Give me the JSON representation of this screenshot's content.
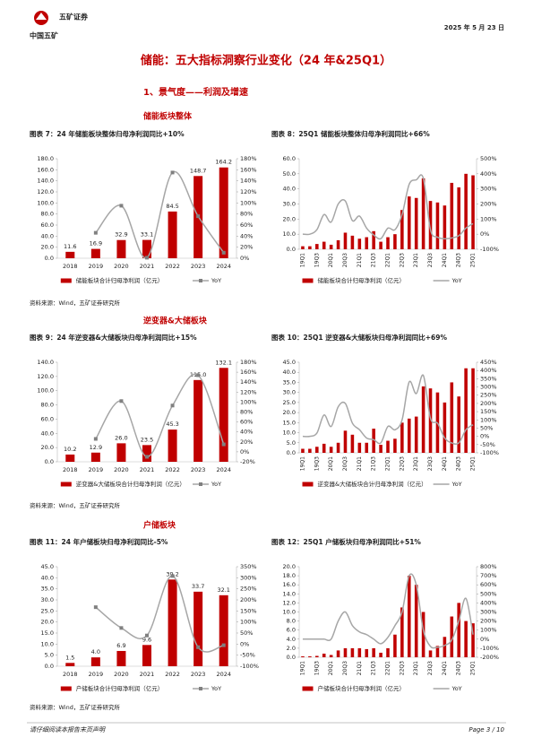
{
  "header": {
    "logo": "中国五矿",
    "brand": "五矿证券",
    "date": "2025 年 5 月 23 日"
  },
  "title": "储能：五大指标洞察行业变化（24 年&25Q1）",
  "subtitle": "1、景气度——利润及增速",
  "sections": [
    {
      "heading": "储能板块整体",
      "source": "资料来源：Wind，五矿证券研究所"
    },
    {
      "heading": "逆变器&大储板块",
      "source": "资料来源：Wind，五矿证券研究所"
    },
    {
      "heading": "户储板块",
      "source": "资料来源：Wind，五矿证券研究所"
    }
  ],
  "chart_data": [
    {
      "type": "combo",
      "title": "图表 7：24 年储能板块整体归母净利润同比+10%",
      "categories": [
        "2018",
        "2019",
        "2020",
        "2021",
        "2022",
        "2023",
        "2024"
      ],
      "series": [
        {
          "name": "储能板块合计归母净利润（亿元）",
          "type": "bar",
          "color": "#c00000",
          "values": [
            11.6,
            16.9,
            32.9,
            33.1,
            84.5,
            148.7,
            164.2
          ]
        },
        {
          "name": "YoY",
          "type": "line",
          "axis": "y2",
          "color": "#a6a6a6",
          "marker": "square",
          "smooth": true,
          "values": [
            null,
            46,
            95,
            1,
            155,
            76,
            10
          ]
        }
      ],
      "ylim": [
        0,
        180
      ],
      "yticks": [
        {
          "value": 0,
          "label": "0.0"
        },
        {
          "value": 20,
          "label": "20.0"
        },
        {
          "value": 40,
          "label": "40.0"
        },
        {
          "value": 60,
          "label": "60.0"
        },
        {
          "value": 80,
          "label": "80.0"
        },
        {
          "value": 100,
          "label": "100.0"
        },
        {
          "value": 120,
          "label": "120.0"
        },
        {
          "value": 140,
          "label": "140.0"
        },
        {
          "value": 160,
          "label": "160.0"
        },
        {
          "value": 180,
          "label": "180.0"
        }
      ],
      "y2lim": [
        0,
        180
      ],
      "y2ticks": [
        {
          "value": 0,
          "label": "0%"
        },
        {
          "value": 20,
          "label": "20%"
        },
        {
          "value": 40,
          "label": "40%"
        },
        {
          "value": 60,
          "label": "60%"
        },
        {
          "value": 80,
          "label": "80%"
        },
        {
          "value": 100,
          "label": "100%"
        },
        {
          "value": 120,
          "label": "120%"
        },
        {
          "value": 140,
          "label": "140%"
        },
        {
          "value": 160,
          "label": "160%"
        },
        {
          "value": 180,
          "label": "180%"
        }
      ]
    },
    {
      "type": "combo",
      "title": "图表 8：25Q1 储能板块整体归母净利润同比+66%",
      "categories": [
        "19Q1",
        null,
        "19Q3",
        null,
        "20Q1",
        null,
        "20Q3",
        null,
        "21Q1",
        null,
        "21Q3",
        null,
        "22Q1",
        null,
        "22Q3",
        null,
        "23Q1",
        null,
        "23Q3",
        null,
        "24Q1",
        null,
        "24Q3",
        null,
        "25Q1"
      ],
      "series": [
        {
          "name": "储能板块合计归母净利润（亿元）",
          "type": "bar",
          "color": "#c00000",
          "values": [
            2,
            2,
            3.5,
            5,
            3,
            6,
            11,
            9,
            7,
            8,
            12,
            5,
            8,
            10,
            26,
            35,
            34,
            47,
            32,
            31,
            29,
            44,
            41,
            50,
            49
          ]
        },
        {
          "name": "YoY",
          "type": "line",
          "axis": "y2",
          "color": "#a6a6a6",
          "smooth": true,
          "values": [
            0,
            0,
            30,
            130,
            80,
            200,
            220,
            90,
            120,
            40,
            -5,
            -30,
            40,
            30,
            130,
            330,
            360,
            370,
            30,
            -20,
            -30,
            -25,
            -10,
            40,
            70
          ]
        }
      ],
      "ylim": [
        0,
        60
      ],
      "yticks": [
        {
          "value": 0,
          "label": "0.0"
        },
        {
          "value": 10,
          "label": "10.0"
        },
        {
          "value": 20,
          "label": "20.0"
        },
        {
          "value": 30,
          "label": "30.0"
        },
        {
          "value": 40,
          "label": "40.0"
        },
        {
          "value": 50,
          "label": "50.0"
        },
        {
          "value": 60,
          "label": "60.0"
        }
      ],
      "y2lim": [
        -100,
        500
      ],
      "y2ticks": [
        {
          "value": -100,
          "label": "-100%"
        },
        {
          "value": 0,
          "label": "0%"
        },
        {
          "value": 100,
          "label": "100%"
        },
        {
          "value": 200,
          "label": "200%"
        },
        {
          "value": 300,
          "label": "300%"
        },
        {
          "value": 400,
          "label": "400%"
        },
        {
          "value": 500,
          "label": "500%"
        }
      ]
    },
    {
      "type": "combo",
      "title": "图表 9：24 年逆变器&大储板块归母净利润同比+15%",
      "categories": [
        "2018",
        "2019",
        "2020",
        "2021",
        "2022",
        "2023",
        "2024"
      ],
      "series": [
        {
          "name": "逆变器&大储板块合计归母净利润（亿元）",
          "type": "bar",
          "color": "#c00000",
          "values": [
            10.2,
            12.9,
            26,
            23.5,
            45.3,
            115,
            132.1
          ],
          "value_labels": [
            "10.2",
            "12.9",
            "26.0",
            "23.5",
            "45.3",
            "115.0",
            "132.1"
          ]
        },
        {
          "name": "YoY",
          "type": "line",
          "axis": "y2",
          "color": "#a6a6a6",
          "marker": "square",
          "smooth": true,
          "values": [
            null,
            26,
            102,
            -10,
            93,
            154,
            15
          ]
        }
      ],
      "ylim": [
        0,
        140
      ],
      "yticks": [
        {
          "value": 0,
          "label": "0.0"
        },
        {
          "value": 20,
          "label": "20.0"
        },
        {
          "value": 40,
          "label": "40.0"
        },
        {
          "value": 60,
          "label": "60.0"
        },
        {
          "value": 80,
          "label": "80.0"
        },
        {
          "value": 100,
          "label": "100.0"
        },
        {
          "value": 120,
          "label": "120.0"
        },
        {
          "value": 140,
          "label": "140.0"
        }
      ],
      "y2lim": [
        -20,
        180
      ],
      "y2ticks": [
        {
          "value": -20,
          "label": "-20%"
        },
        {
          "value": 0,
          "label": "0%"
        },
        {
          "value": 20,
          "label": "20%"
        },
        {
          "value": 40,
          "label": "40%"
        },
        {
          "value": 60,
          "label": "60%"
        },
        {
          "value": 80,
          "label": "80%"
        },
        {
          "value": 100,
          "label": "100%"
        },
        {
          "value": 120,
          "label": "120%"
        },
        {
          "value": 140,
          "label": "140%"
        },
        {
          "value": 160,
          "label": "160%"
        },
        {
          "value": 180,
          "label": "180%"
        }
      ]
    },
    {
      "type": "combo",
      "title": "图表 10：25Q1 逆变器&大储板块归母净利润同比+69%",
      "categories": [
        "19Q1",
        null,
        "19Q3",
        null,
        "20Q1",
        null,
        "20Q3",
        null,
        "21Q1",
        null,
        "21Q3",
        null,
        "22Q1",
        null,
        "22Q3",
        null,
        "23Q1",
        null,
        "23Q3",
        null,
        "24Q1",
        null,
        "24Q3",
        null,
        "25Q1"
      ],
      "series": [
        {
          "name": "逆变器&大储板块合计归母净利润（亿元）",
          "type": "bar",
          "color": "#c00000",
          "values": [
            2,
            2,
            3,
            4.5,
            3,
            5,
            11,
            9,
            5,
            5,
            12,
            4,
            6,
            7,
            15,
            17,
            18,
            33,
            32,
            30,
            25,
            35,
            28,
            42,
            42
          ]
        },
        {
          "name": "YoY",
          "type": "line",
          "axis": "y2",
          "color": "#a6a6a6",
          "smooth": true,
          "values": [
            0,
            0,
            20,
            130,
            60,
            180,
            200,
            80,
            40,
            -10,
            -20,
            -40,
            60,
            40,
            100,
            330,
            260,
            370,
            110,
            80,
            -10,
            -40,
            -40,
            40,
            70
          ]
        }
      ],
      "ylim": [
        0,
        45
      ],
      "yticks": [
        {
          "value": 0,
          "label": "0.0"
        },
        {
          "value": 5,
          "label": "5.0"
        },
        {
          "value": 10,
          "label": "10.0"
        },
        {
          "value": 15,
          "label": "15.0"
        },
        {
          "value": 20,
          "label": "20.0"
        },
        {
          "value": 25,
          "label": "25.0"
        },
        {
          "value": 30,
          "label": "30.0"
        },
        {
          "value": 35,
          "label": "35.0"
        },
        {
          "value": 40,
          "label": "40.0"
        },
        {
          "value": 45,
          "label": "45.0"
        }
      ],
      "y2lim": [
        -100,
        450
      ],
      "y2ticks": [
        {
          "value": -100,
          "label": "-100%"
        },
        {
          "value": -50,
          "label": "-50%"
        },
        {
          "value": 0,
          "label": "0%"
        },
        {
          "value": 50,
          "label": "50%"
        },
        {
          "value": 100,
          "label": "100%"
        },
        {
          "value": 150,
          "label": "150%"
        },
        {
          "value": 200,
          "label": "200%"
        },
        {
          "value": 250,
          "label": "250%"
        },
        {
          "value": 300,
          "label": "300%"
        },
        {
          "value": 350,
          "label": "350%"
        },
        {
          "value": 400,
          "label": "400%"
        },
        {
          "value": 450,
          "label": "450%"
        }
      ]
    },
    {
      "type": "combo",
      "title": "图表 11：24 年户储板块归母净利润同比-5%",
      "categories": [
        "2018",
        "2019",
        "2020",
        "2021",
        "2022",
        "2023",
        "2024"
      ],
      "series": [
        {
          "name": "户储板块合计归母净利润（亿元）",
          "type": "bar",
          "color": "#c00000",
          "values": [
            1.5,
            4,
            6.9,
            9.6,
            39.2,
            33.7,
            32.1
          ],
          "value_labels": [
            "1.5",
            "4.0",
            "6.9",
            "9.6",
            "39.2",
            "33.7",
            "32.1"
          ]
        },
        {
          "name": "YoY",
          "type": "line",
          "axis": "y2",
          "color": "#a6a6a6",
          "marker": "square",
          "smooth": true,
          "values": [
            null,
            167,
            73,
            39,
            308,
            -14,
            -5
          ]
        }
      ],
      "ylim": [
        0,
        45
      ],
      "yticks": [
        {
          "value": 0,
          "label": "0.0"
        },
        {
          "value": 5,
          "label": "5.0"
        },
        {
          "value": 10,
          "label": "10.0"
        },
        {
          "value": 15,
          "label": "15.0"
        },
        {
          "value": 20,
          "label": "20.0"
        },
        {
          "value": 25,
          "label": "25.0"
        },
        {
          "value": 30,
          "label": "30.0"
        },
        {
          "value": 35,
          "label": "35.0"
        },
        {
          "value": 40,
          "label": "40.0"
        },
        {
          "value": 45,
          "label": "45.0"
        }
      ],
      "y2lim": [
        -100,
        350
      ],
      "y2ticks": [
        {
          "value": -100,
          "label": "-100%"
        },
        {
          "value": -50,
          "label": "-50%"
        },
        {
          "value": 0,
          "label": "0%"
        },
        {
          "value": 50,
          "label": "50%"
        },
        {
          "value": 100,
          "label": "100%"
        },
        {
          "value": 150,
          "label": "150%"
        },
        {
          "value": 200,
          "label": "200%"
        },
        {
          "value": 250,
          "label": "250%"
        },
        {
          "value": 300,
          "label": "300%"
        },
        {
          "value": 350,
          "label": "350%"
        }
      ]
    },
    {
      "type": "combo",
      "title": "图表 12：25Q1 户储板块归母净利润同比+51%",
      "categories": [
        "19Q1",
        null,
        "19Q3",
        null,
        "20Q1",
        null,
        "20Q3",
        null,
        "21Q1",
        null,
        "21Q3",
        null,
        "22Q1",
        null,
        "22Q3",
        null,
        "23Q1",
        null,
        "23Q3",
        null,
        "24Q1",
        null,
        "24Q3",
        null,
        "25Q1"
      ],
      "series": [
        {
          "name": "户储板块合计归母净利润（亿元）",
          "type": "bar",
          "color": "#c00000",
          "values": [
            0.2,
            0.2,
            0.3,
            0.8,
            0.5,
            1.5,
            2,
            2,
            2,
            1.8,
            2,
            1,
            2,
            5,
            11,
            18,
            16,
            10,
            1.5,
            2.5,
            4.5,
            9,
            12,
            8,
            7.5
          ]
        },
        {
          "name": "YoY",
          "type": "line",
          "axis": "y2",
          "color": "#a6a6a6",
          "smooth": true,
          "values": [
            0,
            0,
            0,
            0,
            0,
            200,
            300,
            150,
            80,
            50,
            0,
            -50,
            20,
            150,
            300,
            700,
            600,
            100,
            -80,
            -90,
            -70,
            -10,
            200,
            450,
            50
          ]
        }
      ],
      "ylim": [
        0,
        20
      ],
      "yticks": [
        {
          "value": 0,
          "label": "0.0"
        },
        {
          "value": 2,
          "label": "2.0"
        },
        {
          "value": 4,
          "label": "4.0"
        },
        {
          "value": 6,
          "label": "6.0"
        },
        {
          "value": 8,
          "label": "8.0"
        },
        {
          "value": 10,
          "label": "10.0"
        },
        {
          "value": 12,
          "label": "12.0"
        },
        {
          "value": 14,
          "label": "14.0"
        },
        {
          "value": 16,
          "label": "16.0"
        },
        {
          "value": 18,
          "label": "18.0"
        },
        {
          "value": 20,
          "label": "20.0"
        }
      ],
      "y2lim": [
        -200,
        800
      ],
      "y2ticks": [
        {
          "value": -200,
          "label": "-200%"
        },
        {
          "value": -100,
          "label": "-100%"
        },
        {
          "value": 0,
          "label": "0%"
        },
        {
          "value": 100,
          "label": "100%"
        },
        {
          "value": 200,
          "label": "200%"
        },
        {
          "value": 300,
          "label": "300%"
        },
        {
          "value": 400,
          "label": "400%"
        },
        {
          "value": 500,
          "label": "500%"
        },
        {
          "value": 600,
          "label": "600%"
        },
        {
          "value": 700,
          "label": "700%"
        },
        {
          "value": 800,
          "label": "800%"
        }
      ]
    }
  ],
  "footer": {
    "disclaimer": "请仔细阅读本报告末页声明",
    "page": "Page  3 / 10"
  }
}
